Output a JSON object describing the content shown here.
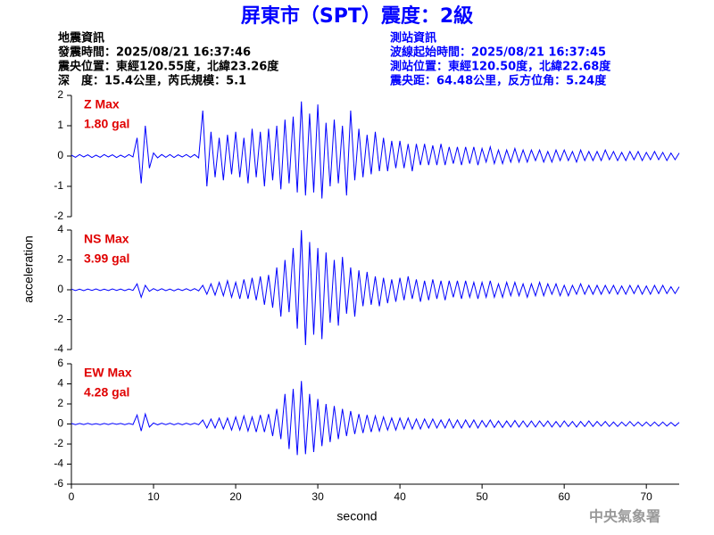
{
  "header": {
    "title": "屏東市（SPT）震度：2級",
    "left": [
      "地震資訊",
      "發震時間：2025/08/21 16:37:46",
      "震央位置：東經120.55度，北緯23.26度",
      "深　度：15.4公里，芮氏規模：5.1"
    ],
    "right": [
      "測站資訊",
      "波線起始時間：2025/08/21 16:37:45",
      "測站位置：東經120.50度，北緯22.68度",
      "震央距：64.48公里，反方位角：5.24度"
    ],
    "ylabel": "acceleration",
    "footer": "中央氣象署"
  },
  "chart_data": [
    {
      "type": "line",
      "annotations": [
        "Z Max",
        "1.80 gal"
      ],
      "color": "#0000ff",
      "xlim": [
        0,
        74
      ],
      "ylim": [
        -2,
        2
      ],
      "yticks": [
        -2,
        -1,
        0,
        1,
        2
      ],
      "x": [
        0,
        0.5,
        1,
        1.5,
        2,
        2.5,
        3,
        3.5,
        4,
        4.5,
        5,
        5.5,
        6,
        6.5,
        7,
        7.5,
        8,
        8.5,
        9,
        9.5,
        10,
        10.5,
        11,
        11.5,
        12,
        12.5,
        13,
        13.5,
        14,
        14.5,
        15,
        15.5,
        16,
        16.5,
        17,
        17.5,
        18,
        18.5,
        19,
        19.5,
        20,
        20.5,
        21,
        21.5,
        22,
        22.5,
        23,
        23.5,
        24,
        24.5,
        25,
        25.5,
        26,
        26.5,
        27,
        27.5,
        28,
        28.5,
        29,
        29.5,
        30,
        30.5,
        31,
        31.5,
        32,
        32.5,
        33,
        33.5,
        34,
        34.5,
        35,
        35.5,
        36,
        36.5,
        37,
        37.5,
        38,
        38.5,
        39,
        39.5,
        40,
        40.5,
        41,
        41.5,
        42,
        42.5,
        43,
        43.5,
        44,
        44.5,
        45,
        45.5,
        46,
        46.5,
        47,
        47.5,
        48,
        48.5,
        49,
        49.5,
        50,
        50.5,
        51,
        51.5,
        52,
        52.5,
        53,
        53.5,
        54,
        54.5,
        55,
        55.5,
        56,
        56.5,
        57,
        57.5,
        58,
        58.5,
        59,
        59.5,
        60,
        60.5,
        61,
        61.5,
        62,
        62.5,
        63,
        63.5,
        64,
        64.5,
        65,
        65.5,
        66,
        66.5,
        67,
        67.5,
        68,
        68.5,
        69,
        69.5,
        70,
        70.5,
        71,
        71.5,
        72,
        72.5,
        73,
        73.5,
        74
      ],
      "values": [
        0.03,
        -0.04,
        0.05,
        -0.03,
        0.04,
        -0.05,
        0.03,
        -0.04,
        0.05,
        -0.03,
        0.04,
        -0.05,
        0.03,
        -0.04,
        0.05,
        -0.03,
        0.6,
        -0.9,
        1.0,
        -0.4,
        0.1,
        -0.06,
        0.05,
        -0.04,
        0.05,
        -0.05,
        0.04,
        -0.03,
        0.05,
        -0.04,
        0.05,
        -0.06,
        1.5,
        -1.0,
        0.8,
        -0.7,
        0.6,
        -0.8,
        0.7,
        -0.6,
        0.8,
        -0.7,
        0.6,
        -0.9,
        0.9,
        -0.7,
        0.8,
        -1.0,
        0.9,
        -0.8,
        1.0,
        -1.1,
        1.2,
        -0.9,
        1.3,
        -1.2,
        1.8,
        -1.3,
        1.4,
        -1.2,
        1.7,
        -1.4,
        1.1,
        -1.0,
        1.2,
        -0.9,
        1.0,
        -1.3,
        1.5,
        -0.8,
        0.9,
        -0.7,
        0.7,
        -0.6,
        0.8,
        -0.5,
        0.6,
        -0.5,
        0.5,
        -0.4,
        0.5,
        -0.4,
        0.4,
        -0.5,
        0.4,
        -0.3,
        0.4,
        -0.3,
        0.35,
        -0.3,
        0.4,
        -0.3,
        0.3,
        -0.25,
        0.3,
        -0.3,
        0.3,
        -0.25,
        0.3,
        -0.3,
        0.25,
        -0.2,
        0.3,
        -0.25,
        0.2,
        -0.25,
        0.2,
        -0.2,
        0.25,
        -0.2,
        0.2,
        -0.2,
        0.2,
        -0.15,
        0.2,
        -0.2,
        0.15,
        -0.2,
        0.2,
        -0.15,
        0.2,
        -0.15,
        0.15,
        -0.2,
        0.2,
        -0.15,
        0.15,
        -0.15,
        0.15,
        -0.15,
        0.2,
        -0.12,
        0.15,
        -0.15,
        0.12,
        -0.15,
        0.15,
        -0.12,
        0.15,
        -0.15,
        0.12,
        -0.12,
        0.15,
        -0.12,
        0.12,
        -0.15,
        0.1,
        -0.12,
        0.1
      ]
    },
    {
      "type": "line",
      "annotations": [
        "NS Max",
        "3.99 gal"
      ],
      "color": "#0000ff",
      "xlim": [
        0,
        74
      ],
      "ylim": [
        -4,
        4
      ],
      "yticks": [
        -4,
        -2,
        0,
        2,
        4
      ],
      "x": [
        0,
        0.5,
        1,
        1.5,
        2,
        2.5,
        3,
        3.5,
        4,
        4.5,
        5,
        5.5,
        6,
        6.5,
        7,
        7.5,
        8,
        8.5,
        9,
        9.5,
        10,
        10.5,
        11,
        11.5,
        12,
        12.5,
        13,
        13.5,
        14,
        14.5,
        15,
        15.5,
        16,
        16.5,
        17,
        17.5,
        18,
        18.5,
        19,
        19.5,
        20,
        20.5,
        21,
        21.5,
        22,
        22.5,
        23,
        23.5,
        24,
        24.5,
        25,
        25.5,
        26,
        26.5,
        27,
        27.5,
        28,
        28.5,
        29,
        29.5,
        30,
        30.5,
        31,
        31.5,
        32,
        32.5,
        33,
        33.5,
        34,
        34.5,
        35,
        35.5,
        36,
        36.5,
        37,
        37.5,
        38,
        38.5,
        39,
        39.5,
        40,
        40.5,
        41,
        41.5,
        42,
        42.5,
        43,
        43.5,
        44,
        44.5,
        45,
        45.5,
        46,
        46.5,
        47,
        47.5,
        48,
        48.5,
        49,
        49.5,
        50,
        50.5,
        51,
        51.5,
        52,
        52.5,
        53,
        53.5,
        54,
        54.5,
        55,
        55.5,
        56,
        56.5,
        57,
        57.5,
        58,
        58.5,
        59,
        59.5,
        60,
        60.5,
        61,
        61.5,
        62,
        62.5,
        63,
        63.5,
        64,
        64.5,
        65,
        65.5,
        66,
        66.5,
        67,
        67.5,
        68,
        68.5,
        69,
        69.5,
        70,
        70.5,
        71,
        71.5,
        72,
        72.5,
        73,
        73.5,
        74
      ],
      "values": [
        0.05,
        -0.05,
        0.04,
        -0.06,
        0.05,
        -0.04,
        0.06,
        -0.05,
        0.04,
        -0.05,
        0.06,
        -0.04,
        0.05,
        -0.06,
        0.05,
        -0.04,
        0.4,
        -0.5,
        0.3,
        -0.1,
        0.08,
        -0.06,
        0.07,
        -0.06,
        0.05,
        -0.07,
        0.06,
        -0.05,
        0.07,
        -0.06,
        0.08,
        -0.07,
        0.3,
        -0.3,
        0.4,
        -0.35,
        0.5,
        -0.4,
        0.6,
        -0.5,
        0.5,
        -0.6,
        0.7,
        -0.6,
        0.8,
        -0.7,
        0.9,
        -1.0,
        1.0,
        -1.2,
        1.5,
        -1.8,
        2.0,
        -1.5,
        2.8,
        -2.6,
        3.99,
        -3.7,
        3.2,
        -3.0,
        2.8,
        -3.3,
        2.5,
        -2.2,
        2.0,
        -2.4,
        2.2,
        -1.6,
        1.5,
        -1.8,
        1.3,
        -1.1,
        1.2,
        -1.0,
        0.9,
        -1.1,
        0.8,
        -0.9,
        0.7,
        -0.8,
        0.8,
        -0.7,
        0.9,
        -0.6,
        0.7,
        -0.8,
        0.6,
        -0.7,
        0.7,
        -0.6,
        0.6,
        -0.7,
        0.6,
        -0.5,
        0.6,
        -0.6,
        0.6,
        -0.5,
        0.5,
        -0.6,
        0.5,
        -0.5,
        0.6,
        -0.5,
        0.4,
        -0.5,
        0.5,
        -0.4,
        0.5,
        -0.4,
        0.4,
        -0.5,
        0.4,
        -0.4,
        0.5,
        -0.4,
        0.4,
        -0.3,
        0.4,
        -0.4,
        0.3,
        -0.4,
        0.3,
        -0.3,
        0.4,
        -0.3,
        0.3,
        -0.3,
        0.3,
        -0.3,
        0.3,
        -0.25,
        0.3,
        -0.3,
        0.25,
        -0.3,
        0.3,
        -0.25,
        0.3,
        -0.3,
        0.25,
        -0.3,
        0.3,
        -0.25,
        0.3,
        -0.25,
        0.2,
        -0.25,
        0.2
      ]
    },
    {
      "type": "line",
      "annotations": [
        "EW Max",
        "4.28 gal"
      ],
      "color": "#0000ff",
      "xlim": [
        0,
        74
      ],
      "xticks": [
        0,
        10,
        20,
        30,
        40,
        50,
        60,
        70
      ],
      "xlabel": "second",
      "ylim": [
        -6,
        6
      ],
      "yticks": [
        -6,
        -4,
        -2,
        0,
        2,
        4,
        6
      ],
      "x": [
        0,
        0.5,
        1,
        1.5,
        2,
        2.5,
        3,
        3.5,
        4,
        4.5,
        5,
        5.5,
        6,
        6.5,
        7,
        7.5,
        8,
        8.5,
        9,
        9.5,
        10,
        10.5,
        11,
        11.5,
        12,
        12.5,
        13,
        13.5,
        14,
        14.5,
        15,
        15.5,
        16,
        16.5,
        17,
        17.5,
        18,
        18.5,
        19,
        19.5,
        20,
        20.5,
        21,
        21.5,
        22,
        22.5,
        23,
        23.5,
        24,
        24.5,
        25,
        25.5,
        26,
        26.5,
        27,
        27.5,
        28,
        28.5,
        29,
        29.5,
        30,
        30.5,
        31,
        31.5,
        32,
        32.5,
        33,
        33.5,
        34,
        34.5,
        35,
        35.5,
        36,
        36.5,
        37,
        37.5,
        38,
        38.5,
        39,
        39.5,
        40,
        40.5,
        41,
        41.5,
        42,
        42.5,
        43,
        43.5,
        44,
        44.5,
        45,
        45.5,
        46,
        46.5,
        47,
        47.5,
        48,
        48.5,
        49,
        49.5,
        50,
        50.5,
        51,
        51.5,
        52,
        52.5,
        53,
        53.5,
        54,
        54.5,
        55,
        55.5,
        56,
        56.5,
        57,
        57.5,
        58,
        58.5,
        59,
        59.5,
        60,
        60.5,
        61,
        61.5,
        62,
        62.5,
        63,
        63.5,
        64,
        64.5,
        65,
        65.5,
        66,
        66.5,
        67,
        67.5,
        68,
        68.5,
        69,
        69.5,
        70,
        70.5,
        71,
        71.5,
        72,
        72.5,
        73,
        73.5,
        74
      ],
      "values": [
        0.05,
        -0.06,
        0.05,
        -0.05,
        0.06,
        -0.05,
        0.04,
        -0.06,
        0.05,
        -0.05,
        0.06,
        -0.04,
        0.05,
        -0.06,
        0.05,
        -0.05,
        0.9,
        -0.7,
        1.0,
        -0.3,
        0.1,
        -0.08,
        0.07,
        -0.06,
        0.08,
        -0.07,
        0.06,
        -0.08,
        0.07,
        -0.06,
        0.08,
        -0.07,
        0.4,
        -0.4,
        0.5,
        -0.4,
        0.6,
        -0.5,
        0.6,
        -0.6,
        0.7,
        -0.6,
        0.8,
        -0.7,
        0.7,
        -0.8,
        0.9,
        -0.8,
        1.0,
        -1.2,
        1.5,
        -1.5,
        3.0,
        -2.5,
        3.5,
        -3.1,
        4.28,
        -3.0,
        3.0,
        -2.8,
        2.5,
        -2.2,
        2.0,
        -1.8,
        1.8,
        -1.5,
        1.5,
        -1.2,
        1.3,
        -1.0,
        1.0,
        -0.9,
        0.9,
        -0.8,
        0.8,
        -0.7,
        0.7,
        -0.6,
        0.6,
        -0.6,
        0.6,
        -0.5,
        0.6,
        -0.5,
        0.5,
        -0.5,
        0.5,
        -0.4,
        0.5,
        -0.4,
        0.4,
        -0.4,
        0.5,
        -0.4,
        0.4,
        -0.4,
        0.4,
        -0.35,
        0.4,
        -0.4,
        0.35,
        -0.3,
        0.4,
        -0.35,
        0.3,
        -0.35,
        0.3,
        -0.3,
        0.35,
        -0.3,
        0.3,
        -0.3,
        0.3,
        -0.3,
        0.3,
        -0.25,
        0.3,
        -0.3,
        0.25,
        -0.3,
        0.3,
        -0.25,
        0.25,
        -0.3,
        0.25,
        -0.25,
        0.3,
        -0.25,
        0.25,
        -0.2,
        0.25,
        -0.25,
        0.2,
        -0.25,
        0.2,
        -0.2,
        0.25,
        -0.2,
        0.2,
        -0.2,
        0.2,
        -0.2,
        0.2,
        -0.2,
        0.2,
        -0.2,
        0.15,
        -0.2,
        0.15
      ]
    }
  ]
}
